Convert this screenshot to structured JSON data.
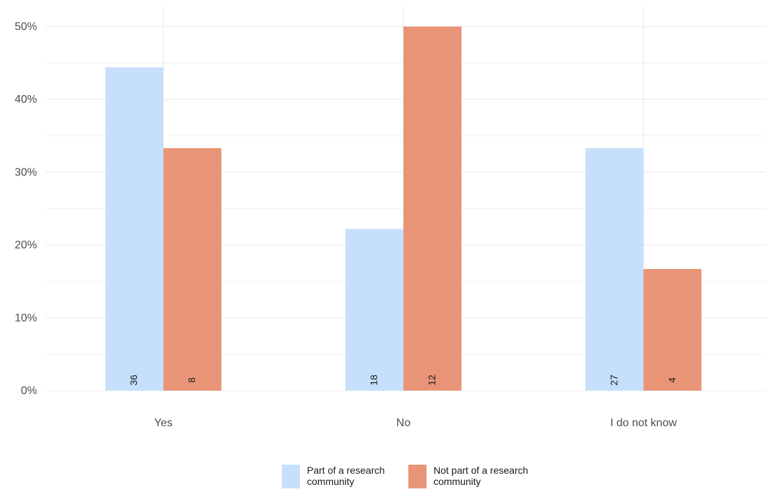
{
  "chart_data": {
    "type": "bar",
    "title": "",
    "xlabel": "",
    "ylabel": "",
    "categories": [
      "Yes",
      "No",
      "I do not know"
    ],
    "ylim": [
      0,
      0.5
    ],
    "yticks": [
      "0%",
      "10%",
      "20%",
      "30%",
      "40%",
      "50%"
    ],
    "series": [
      {
        "name": "Part of a research community",
        "name_lines": [
          "Part of a research",
          "community"
        ],
        "color": "#c6e0fc",
        "values": [
          0.444,
          0.222,
          0.333
        ],
        "counts": [
          "36",
          "18",
          "27"
        ]
      },
      {
        "name": "Not part of a research community",
        "name_lines": [
          "Not part of a research",
          "community"
        ],
        "color": "#e99477",
        "values": [
          0.333,
          0.5,
          0.167
        ],
        "counts": [
          "8",
          "12",
          "4"
        ]
      }
    ],
    "grid": true,
    "legend_position": "bottom"
  }
}
